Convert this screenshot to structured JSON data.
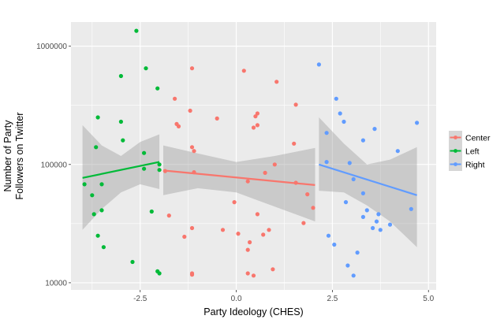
{
  "chart_data": {
    "type": "scatter",
    "xlabel": "Party Ideology (CHES)",
    "ylabel_lines": [
      "Number of Party",
      "Followers on Twitter"
    ],
    "x_ticks": [
      -2.5,
      0.0,
      2.5,
      5.0
    ],
    "x_tick_labels": [
      "-2.5",
      "0.0",
      "2.5",
      "5.0"
    ],
    "xlim": [
      -4.3,
      5.2
    ],
    "y_scale": "log10",
    "y_ticks": [
      10000,
      100000,
      1000000
    ],
    "y_tick_labels": [
      "10000",
      "100000",
      "1000000"
    ],
    "ylim": [
      8700,
      1600000
    ],
    "grid": true,
    "legend": {
      "placement": "right",
      "entries": [
        "Center",
        "Left",
        "Right"
      ]
    },
    "colors": {
      "Center": "#F8766D",
      "Left": "#00BA38",
      "Right": "#619CFF",
      "panel": "#EBEBEB",
      "grid": "#FFFFFF",
      "band": "#999999"
    },
    "series": [
      {
        "name": "Left",
        "points": [
          [
            -2.6,
            1350000
          ],
          [
            -2.35,
            650000
          ],
          [
            -2.05,
            440000
          ],
          [
            -3.0,
            560000
          ],
          [
            -3.6,
            250000
          ],
          [
            -3.0,
            230000
          ],
          [
            -2.95,
            160000
          ],
          [
            -3.65,
            140000
          ],
          [
            -2.4,
            125000
          ],
          [
            -2.0,
            100000
          ],
          [
            -2.4,
            92000
          ],
          [
            -2.0,
            90000
          ],
          [
            -3.95,
            68000
          ],
          [
            -3.5,
            68000
          ],
          [
            -3.75,
            55000
          ],
          [
            -2.2,
            40000
          ],
          [
            -3.5,
            41000
          ],
          [
            -3.7,
            38000
          ],
          [
            -3.6,
            25000
          ],
          [
            -3.45,
            20000
          ],
          [
            -2.7,
            15000
          ],
          [
            -2.05,
            12500
          ],
          [
            -2.0,
            12000
          ]
        ],
        "trend": {
          "x": [
            -4.0,
            -2.0
          ],
          "y": [
            77000,
            105000
          ]
        },
        "band": {
          "x": [
            -4.0,
            -3.5,
            -3.0,
            -2.5,
            -2.0
          ],
          "lo": [
            28000,
            42000,
            58000,
            68000,
            62000
          ],
          "hi": [
            215000,
            145000,
            118000,
            155000,
            180000
          ]
        }
      },
      {
        "name": "Center",
        "points": [
          [
            -1.15,
            650000
          ],
          [
            0.2,
            620000
          ],
          [
            1.05,
            500000
          ],
          [
            -1.6,
            360000
          ],
          [
            1.55,
            320000
          ],
          [
            -1.2,
            285000
          ],
          [
            0.55,
            270000
          ],
          [
            0.5,
            255000
          ],
          [
            -0.5,
            245000
          ],
          [
            -1.55,
            220000
          ],
          [
            -1.5,
            210000
          ],
          [
            0.55,
            215000
          ],
          [
            0.45,
            205000
          ],
          [
            1.5,
            150000
          ],
          [
            -1.15,
            140000
          ],
          [
            -1.1,
            130000
          ],
          [
            1.0,
            100000
          ],
          [
            -1.85,
            88000
          ],
          [
            -1.1,
            86000
          ],
          [
            0.75,
            85000
          ],
          [
            0.3,
            72000
          ],
          [
            1.55,
            70000
          ],
          [
            1.85,
            56000
          ],
          [
            -0.05,
            48000
          ],
          [
            2.0,
            43000
          ],
          [
            0.55,
            38000
          ],
          [
            -1.75,
            37000
          ],
          [
            1.75,
            32000
          ],
          [
            -1.15,
            29000
          ],
          [
            0.85,
            28000
          ],
          [
            -0.35,
            28000
          ],
          [
            0.05,
            26000
          ],
          [
            0.7,
            25500
          ],
          [
            -1.35,
            24500
          ],
          [
            0.35,
            22000
          ],
          [
            0.3,
            19000
          ],
          [
            0.95,
            13000
          ],
          [
            0.3,
            12000
          ],
          [
            0.45,
            11500
          ],
          [
            -1.15,
            12000
          ],
          [
            -1.15,
            11700
          ]
        ],
        "trend": {
          "x": [
            -1.9,
            2.05
          ],
          "y": [
            89000,
            67000
          ]
        },
        "band": {
          "x": [
            -1.9,
            -1.0,
            0.0,
            1.0,
            2.05
          ],
          "lo": [
            55000,
            63000,
            58000,
            44000,
            33000
          ],
          "hi": [
            145000,
            124000,
            105000,
            118000,
            138000
          ]
        }
      },
      {
        "name": "Right",
        "points": [
          [
            2.15,
            700000
          ],
          [
            2.6,
            360000
          ],
          [
            2.7,
            270000
          ],
          [
            2.8,
            230000
          ],
          [
            4.7,
            225000
          ],
          [
            3.6,
            200000
          ],
          [
            2.35,
            185000
          ],
          [
            3.3,
            160000
          ],
          [
            4.2,
            130000
          ],
          [
            2.35,
            105000
          ],
          [
            2.95,
            103000
          ],
          [
            3.05,
            75000
          ],
          [
            3.3,
            57000
          ],
          [
            2.85,
            48000
          ],
          [
            4.55,
            42000
          ],
          [
            3.4,
            41000
          ],
          [
            3.7,
            38000
          ],
          [
            3.3,
            36000
          ],
          [
            3.65,
            33000
          ],
          [
            4.0,
            31000
          ],
          [
            3.55,
            29000
          ],
          [
            3.75,
            28000
          ],
          [
            2.4,
            25000
          ],
          [
            2.55,
            21000
          ],
          [
            3.15,
            18000
          ],
          [
            2.9,
            14000
          ],
          [
            3.05,
            11500
          ]
        ],
        "trend": {
          "x": [
            2.15,
            4.7
          ],
          "y": [
            100000,
            55000
          ]
        },
        "band": {
          "x": [
            2.15,
            2.8,
            3.4,
            4.0,
            4.7
          ],
          "lo": [
            60000,
            58000,
            45000,
            33000,
            20000
          ],
          "hi": [
            250000,
            150000,
            100000,
            110000,
            140000
          ]
        }
      }
    ]
  }
}
